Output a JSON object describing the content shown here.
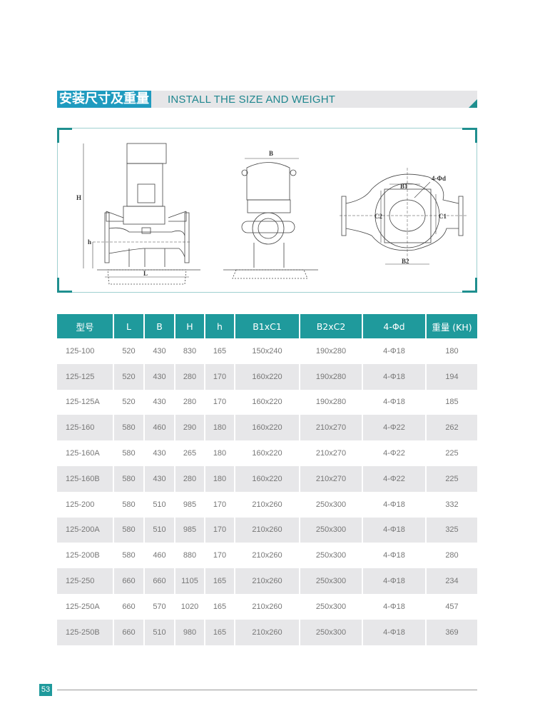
{
  "section": {
    "title_cn": "安装尺寸及重量",
    "title_en": "INSTALL THE SIZE AND WEIGHT",
    "accent_color": "#1f9a9c"
  },
  "drawing": {
    "labels": {
      "H": "H",
      "h": "h",
      "L": "L",
      "B": "B",
      "B1": "B1",
      "B2": "B2",
      "C1": "C1",
      "C2": "C2",
      "holes": "4-Φd"
    }
  },
  "table": {
    "headers": [
      "型号",
      "L",
      "B",
      "H",
      "h",
      "B1xC1",
      "B2xC2",
      "4-Φd",
      "重量 (KH)"
    ],
    "rows": [
      [
        "125-100",
        "520",
        "430",
        "830",
        "165",
        "150x240",
        "190x280",
        "4-Φ18",
        "180"
      ],
      [
        "125-125",
        "520",
        "430",
        "280",
        "170",
        "160x220",
        "190x280",
        "4-Φ18",
        "194"
      ],
      [
        "125-125A",
        "520",
        "430",
        "280",
        "170",
        "160x220",
        "190x280",
        "4-Φ18",
        "185"
      ],
      [
        "125-160",
        "580",
        "460",
        "290",
        "180",
        "160x220",
        "210x270",
        "4-Φ22",
        "262"
      ],
      [
        "125-160A",
        "580",
        "430",
        "265",
        "180",
        "160x220",
        "210x270",
        "4-Φ22",
        "225"
      ],
      [
        "125-160B",
        "580",
        "430",
        "280",
        "180",
        "160x220",
        "210x270",
        "4-Φ22",
        "225"
      ],
      [
        "125-200",
        "580",
        "510",
        "985",
        "170",
        "210x260",
        "250x300",
        "4-Φ18",
        "332"
      ],
      [
        "125-200A",
        "580",
        "510",
        "985",
        "170",
        "210x260",
        "250x300",
        "4-Φ18",
        "325"
      ],
      [
        "125-200B",
        "580",
        "460",
        "880",
        "170",
        "210x260",
        "250x300",
        "4-Φ18",
        "280"
      ],
      [
        "125-250",
        "660",
        "660",
        "1105",
        "165",
        "210x260",
        "250x300",
        "4-Φ18",
        "234"
      ],
      [
        "125-250A",
        "660",
        "570",
        "1020",
        "165",
        "210x260",
        "250x300",
        "4-Φ18",
        "457"
      ],
      [
        "125-250B",
        "660",
        "510",
        "980",
        "165",
        "210x260",
        "250x300",
        "4-Φ18",
        "369"
      ]
    ]
  },
  "footer": {
    "page_number": "53"
  }
}
